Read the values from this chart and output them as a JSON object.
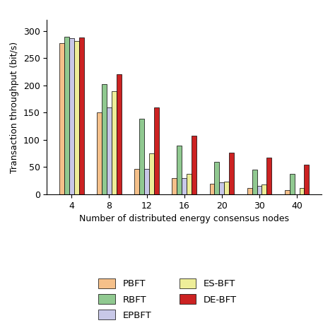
{
  "categories": [
    4,
    8,
    12,
    16,
    20,
    30,
    40
  ],
  "series": {
    "PBFT": [
      278,
      150,
      46,
      30,
      20,
      12,
      8
    ],
    "RBFT": [
      290,
      203,
      139,
      89,
      60,
      45,
      38
    ],
    "EPBFT": [
      287,
      160,
      46,
      30,
      22,
      15,
      0
    ],
    "ES-BFT": [
      282,
      190,
      75,
      38,
      23,
      18,
      12
    ],
    "DE-BFT": [
      288,
      220,
      160,
      108,
      77,
      67,
      54
    ]
  },
  "colors": {
    "PBFT": "#F5C08A",
    "RBFT": "#90C990",
    "EPBFT": "#C8C8E8",
    "ES-BFT": "#EEEE99",
    "DE-BFT": "#CC2222"
  },
  "ylabel": "Transaction throughput (bit/s)",
  "xlabel": "Number of distributed energy consensus nodes",
  "ylim": [
    0,
    320
  ],
  "yticks": [
    0,
    50,
    100,
    150,
    200,
    250,
    300
  ],
  "bar_width": 0.13,
  "legend_order": [
    "PBFT",
    "RBFT",
    "EPBFT",
    "ES-BFT",
    "DE-BFT"
  ],
  "legend_cols": 2
}
